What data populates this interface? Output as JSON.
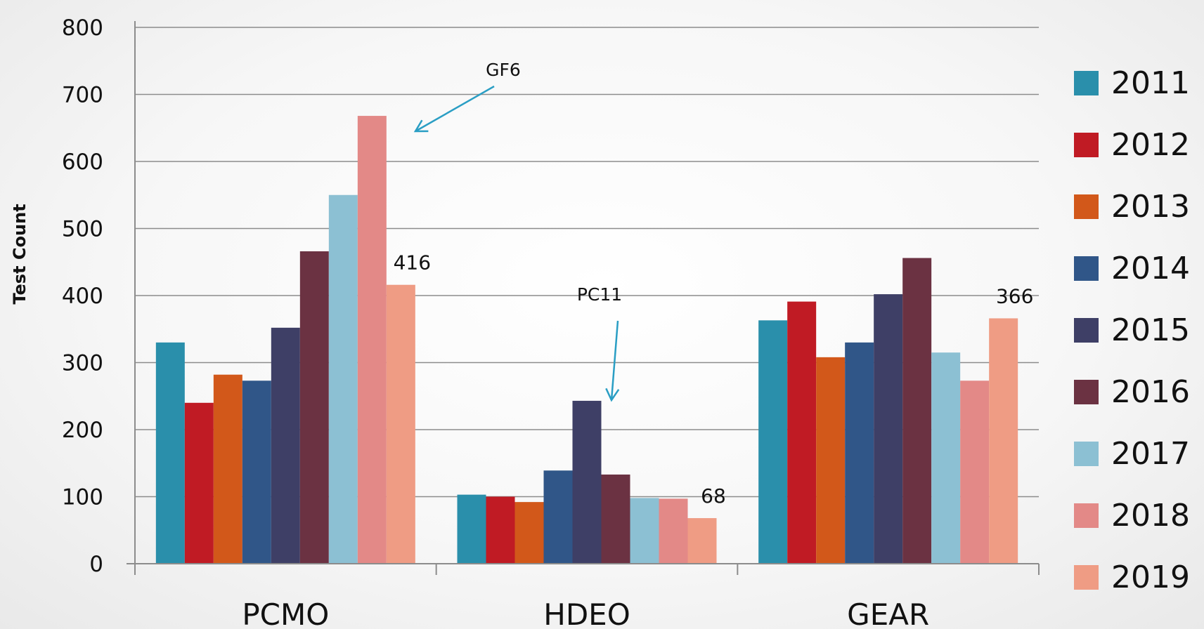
{
  "chart_data": {
    "type": "bar",
    "ylabel": "Test Count",
    "xlabel": "",
    "ylim": [
      0,
      800
    ],
    "yticks": [
      0,
      100,
      200,
      300,
      400,
      500,
      600,
      700,
      800
    ],
    "grid": true,
    "legend_position": "right",
    "categories": [
      "PCMO",
      "HDEO",
      "GEAR"
    ],
    "series": [
      {
        "name": "2011",
        "color": "#2a8fab",
        "values": [
          330,
          103,
          363
        ]
      },
      {
        "name": "2012",
        "color": "#c01b24",
        "values": [
          240,
          100,
          391
        ]
      },
      {
        "name": "2013",
        "color": "#d2581a",
        "values": [
          282,
          92,
          308
        ]
      },
      {
        "name": "2014",
        "color": "#305688",
        "values": [
          273,
          139,
          330
        ]
      },
      {
        "name": "2015",
        "color": "#3e3f66",
        "values": [
          352,
          243,
          402
        ]
      },
      {
        "name": "2016",
        "color": "#6b3242",
        "values": [
          466,
          133,
          456
        ]
      },
      {
        "name": "2017",
        "color": "#8cc0d3",
        "values": [
          550,
          98,
          315
        ]
      },
      {
        "name": "2018",
        "color": "#e38987",
        "values": [
          668,
          97,
          273
        ]
      },
      {
        "name": "2019",
        "color": "#ef9c84",
        "values": [
          416,
          68,
          366
        ]
      }
    ],
    "data_labels": [
      {
        "category": "PCMO",
        "series": "2019",
        "text": "416"
      },
      {
        "category": "HDEO",
        "series": "2019",
        "text": "68"
      },
      {
        "category": "GEAR",
        "series": "2019",
        "text": "366"
      }
    ],
    "annotations": [
      {
        "text": "GF6",
        "category": "PCMO",
        "series": "2018",
        "value": 668
      },
      {
        "text": "PC11",
        "category": "HDEO",
        "series": "2015",
        "value": 243
      }
    ]
  }
}
